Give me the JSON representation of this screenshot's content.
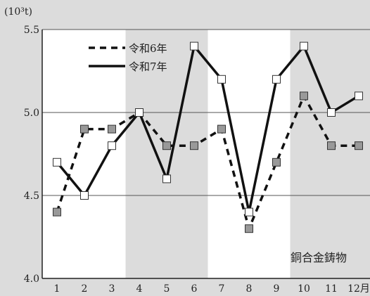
{
  "unit": "(10³t)",
  "chart_title": "銅合金鋳物",
  "chart_data": {
    "type": "line",
    "categories": [
      "1",
      "2",
      "3",
      "4",
      "5",
      "6",
      "7",
      "8",
      "9",
      "10",
      "11",
      "12月"
    ],
    "series": [
      {
        "name": "令和6年",
        "style": "dashed",
        "marker": "gray-square",
        "values": [
          4.4,
          4.9,
          4.9,
          5.0,
          4.8,
          4.8,
          4.9,
          4.3,
          4.7,
          5.1,
          4.8,
          4.8
        ]
      },
      {
        "name": "令和7年",
        "style": "solid",
        "marker": "white-square",
        "values": [
          4.7,
          4.5,
          4.8,
          5.0,
          4.6,
          5.4,
          5.2,
          4.4,
          5.2,
          5.4,
          5.0,
          5.1
        ]
      }
    ],
    "ylim": [
      4.0,
      5.5
    ],
    "yticks": [
      "4.0",
      "4.5",
      "5.0",
      "5.5"
    ],
    "grid": "horizontal",
    "shaded_bands": [
      [
        4,
        6
      ],
      [
        10,
        12
      ]
    ],
    "legend": "top-left",
    "colors": {
      "band": "#dcdcdc",
      "background": "#ffffff",
      "line": "#111111",
      "marker_gray": "#999999"
    }
  }
}
